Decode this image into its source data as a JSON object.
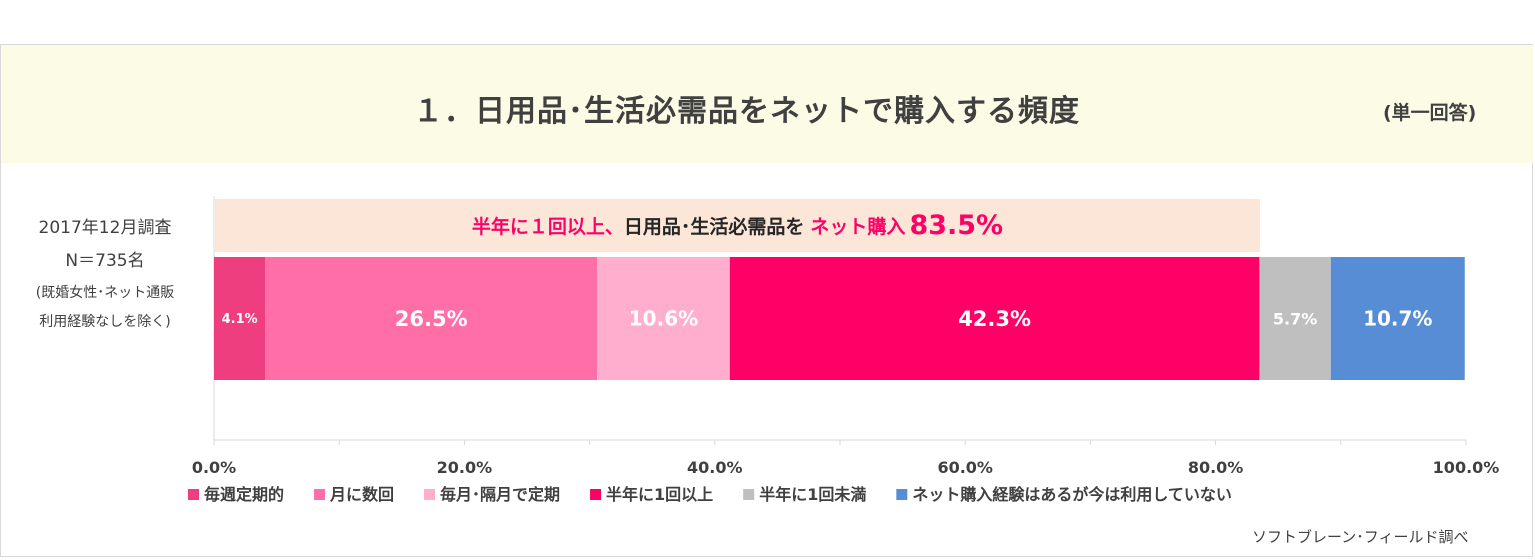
{
  "header": {
    "title": "１．日用品･生活必需品をネットで購入する頻度",
    "answer_type": "(単一回答)"
  },
  "survey": {
    "date": "2017年12月調査",
    "n": "N＝735名",
    "note_line1": "(既婚女性･ネット通販",
    "note_line2": "利用経験なしを除く)"
  },
  "summary": {
    "part1": "半年に１回以上、",
    "part2": "日用品･生活必需品を",
    "part3": "ネット購入",
    "percent": "83.5%"
  },
  "colors": {
    "title_band": "#fcfce6",
    "summary_band": "#fbe6d8",
    "accent": "#ff0066"
  },
  "chart_data": {
    "type": "bar",
    "orientation": "horizontal-stacked-100",
    "categories": [
      "2017年12月調査"
    ],
    "series": [
      {
        "name": "毎週定期的",
        "values": [
          4.1
        ],
        "label": "4.1%",
        "color": "#ee3e80"
      },
      {
        "name": "月に数回",
        "values": [
          26.5
        ],
        "label": "26.5%",
        "color": "#ff6ea7"
      },
      {
        "name": "毎月･隔月で定期",
        "values": [
          10.6
        ],
        "label": "10.6%",
        "color": "#ffaece"
      },
      {
        "name": "半年に1回以上",
        "values": [
          42.3
        ],
        "label": "42.3%",
        "color": "#ff0066"
      },
      {
        "name": "半年に1回未満",
        "values": [
          5.7
        ],
        "label": "5.7%",
        "color": "#bfbfbf"
      },
      {
        "name": "ネット購入経験はあるが今は利用していない",
        "values": [
          10.7
        ],
        "label": "10.7%",
        "color": "#578dd4"
      }
    ],
    "xlim": [
      0,
      100
    ],
    "x_ticks": [
      "0.0%",
      "20.0%",
      "40.0%",
      "60.0%",
      "80.0%",
      "100.0%"
    ],
    "legend_position": "bottom",
    "grid": false
  },
  "source": "ソフトブレーン･フィールド調べ"
}
